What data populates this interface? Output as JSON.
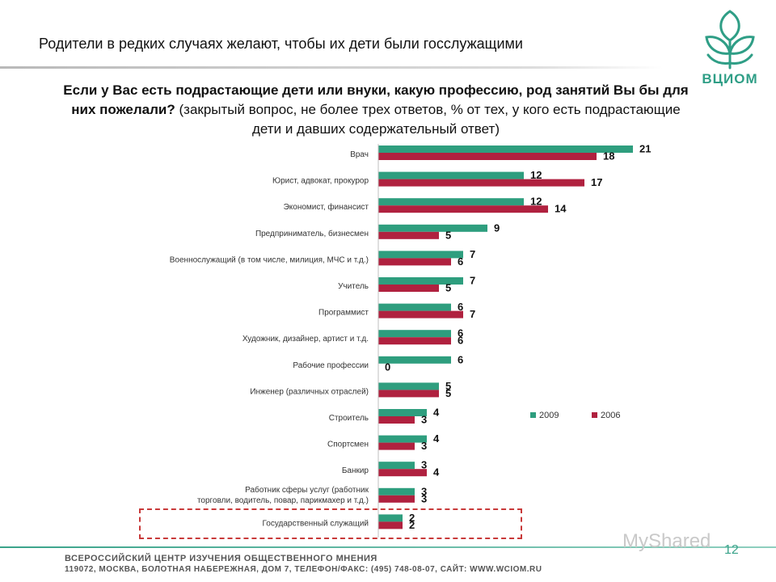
{
  "header": {
    "title": "Родители в редких случаях  желают, чтобы их дети были госслужащими",
    "logo_text": "ВЦИОМ"
  },
  "question": {
    "bold": "Если у Вас есть подрастающие дети или внуки, какую профессию, род занятий Вы бы для них пожелали?",
    "normal": " (закрытый вопрос, не более трех ответов, % от тех, у кого есть подрастающие дети и давших содержательный ответ)"
  },
  "colors": {
    "series_2009": "#2e9e7e",
    "series_2006": "#b0213f",
    "accent": "#3aa38a"
  },
  "chart_data": {
    "type": "bar",
    "orientation": "horizontal",
    "title": "",
    "xlabel": "",
    "ylabel": "",
    "xlim": [
      0,
      24
    ],
    "grid": false,
    "legend_position": "right-middle",
    "categories": [
      "Врач",
      "Юрист, адвокат, прокурор",
      "Экономист, финансист",
      "Предприниматель, бизнесмен",
      "Военнослужащий (в том числе, милиция, МЧС и т.д.)",
      "Учитель",
      "Программист",
      "Художник, дизайнер, артист и т.д.",
      "Рабочие профессии",
      "Инженер (различных отраслей)",
      "Строитель",
      "Спортсмен",
      "Банкир",
      "Работник сферы услуг (работник торговли, водитель, повар, парикмахер и т.д.)",
      "Государственный служащий"
    ],
    "series": [
      {
        "name": "2009",
        "values": [
          21,
          12,
          12,
          9,
          7,
          7,
          6,
          6,
          6,
          5,
          4,
          4,
          3,
          3,
          2
        ]
      },
      {
        "name": "2006",
        "values": [
          18,
          17,
          14,
          5,
          6,
          5,
          7,
          6,
          0,
          5,
          3,
          3,
          4,
          3,
          2
        ]
      }
    ],
    "highlighted_category": "Государственный служащий"
  },
  "footer": {
    "line1": "ВСЕРОССИЙСКИЙ ЦЕНТР ИЗУЧЕНИЯ ОБЩЕСТВЕННОГО МНЕНИЯ",
    "line2": "119072, МОСКВА, БОЛОТНАЯ НАБЕРЕЖНАЯ, ДОМ 7, ТЕЛЕФОН/ФАКС: (495) 748-08-07, САЙТ: WWW.WCIOM.RU",
    "page_number": "12",
    "watermark": "MyShared"
  }
}
